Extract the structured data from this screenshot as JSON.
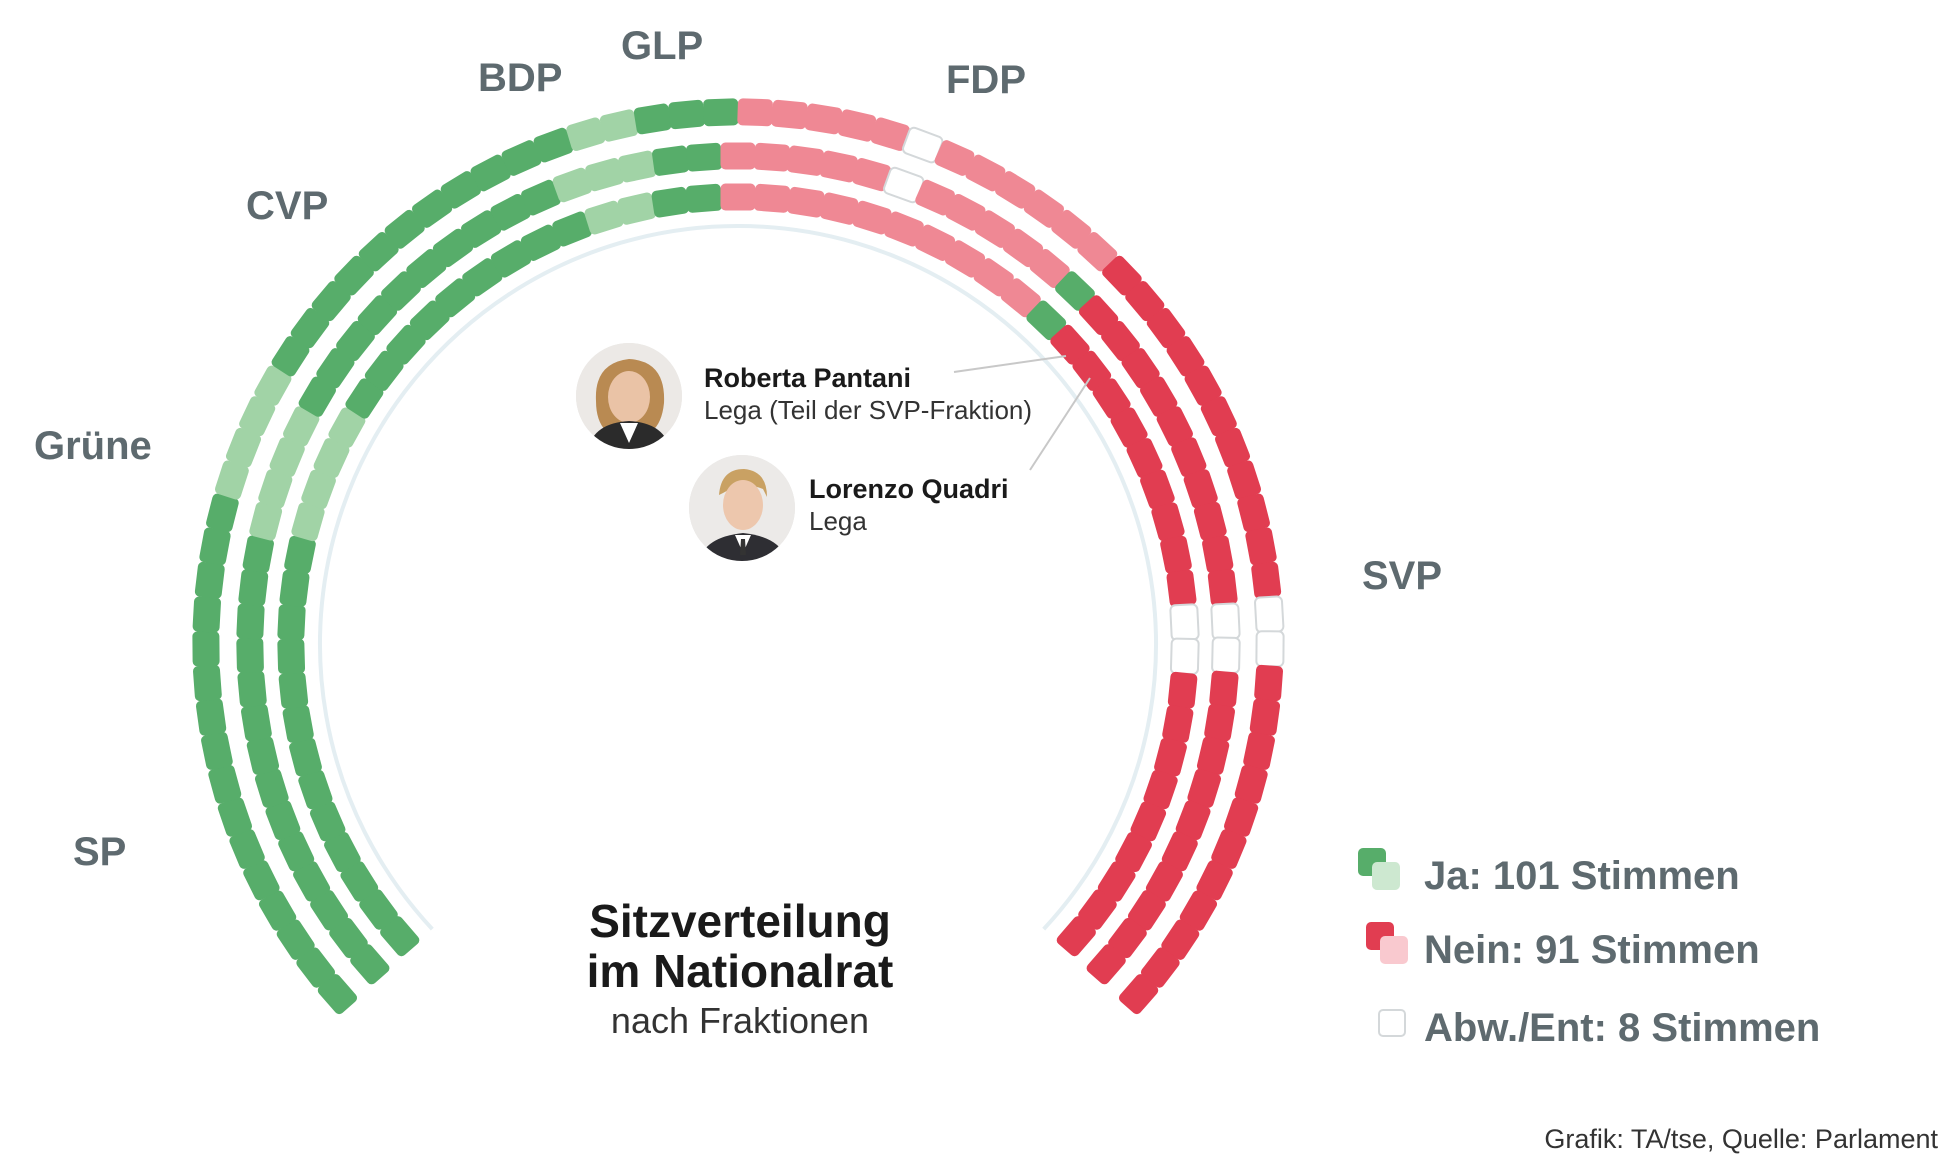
{
  "chart_data": {
    "type": "parliament",
    "title_line1": "Sitzverteilung",
    "title_line2": "im Nationalrat",
    "subtitle": "nach Fraktionen",
    "total_seats": 200,
    "colors": {
      "yes": "#57ad6a",
      "yes_light": "#a1d3a6",
      "no": "#e13d51",
      "no_light": "#ef8894",
      "abstain_fill": "#ffffff",
      "abstain_stroke": "#d4d8da",
      "guide": "#e4eef2"
    },
    "parties": [
      {
        "name": "SP",
        "seats": 43,
        "yes": 43,
        "no": 0,
        "abstain": 0,
        "style": "yes"
      },
      {
        "name": "Grüne",
        "seats": 12,
        "yes": 12,
        "no": 0,
        "abstain": 0,
        "style": "yes_light"
      },
      {
        "name": "CVP",
        "seats": 30,
        "yes": 30,
        "no": 0,
        "abstain": 0,
        "style": "yes"
      },
      {
        "name": "BDP",
        "seats": 7,
        "yes": 7,
        "no": 0,
        "abstain": 0,
        "style": "yes_light"
      },
      {
        "name": "GLP",
        "seats": 7,
        "yes": 7,
        "no": 0,
        "abstain": 0,
        "style": "yes"
      },
      {
        "name": "FDP",
        "seats": 33,
        "yes": 0,
        "no": 31,
        "abstain": 2,
        "style": "no_light"
      },
      {
        "name": "Lega",
        "seats": 2,
        "yes": 2,
        "no": 0,
        "abstain": 0,
        "style": "yes"
      },
      {
        "name": "SVP",
        "seats": 66,
        "yes": 0,
        "no": 60,
        "abstain": 6,
        "style": "no"
      }
    ],
    "legend": [
      {
        "key": "yes",
        "label": "Ja: 101 Stimmen",
        "value": 101
      },
      {
        "key": "no",
        "label": "Nein: 91 Stimmen",
        "value": 91
      },
      {
        "key": "abstain",
        "label": "Abw./Ent: 8 Stimmen",
        "value": 8
      }
    ]
  },
  "annotations": [
    {
      "name": "Roberta Pantani",
      "party": "Lega (Teil der SVP-Fraktion)"
    },
    {
      "name": "Lorenzo Quadri",
      "party": "Lega"
    }
  ],
  "labels": {
    "sp": "SP",
    "gruene": "Grüne",
    "cvp": "CVP",
    "bdp": "BDP",
    "glp": "GLP",
    "fdp": "FDP",
    "svp": "SVP"
  },
  "source": "Grafik: TA/tse, Quelle: Parlament"
}
